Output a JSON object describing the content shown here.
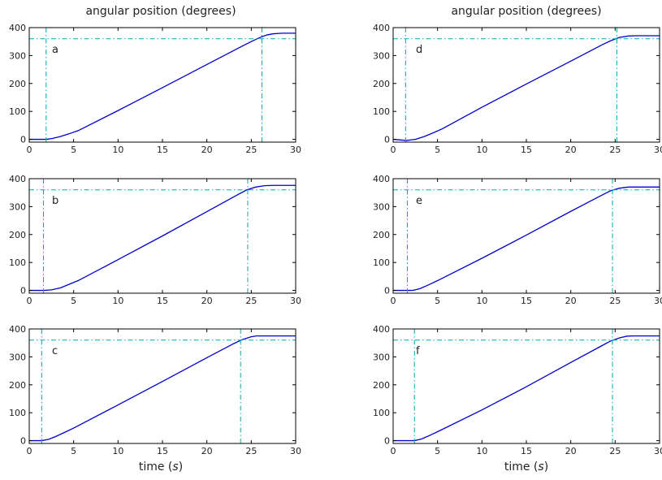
{
  "figure": {
    "left_title": "angular position (degrees)",
    "right_title": "angular position (degrees)",
    "left_xlabel_main": "time",
    "left_xlabel_unit": "s",
    "right_xlabel_main": "time",
    "right_xlabel_unit": "s"
  },
  "chart_data": [
    {
      "id": "a",
      "type": "line",
      "panel_label": "a",
      "xlim": [
        0,
        30
      ],
      "ylim": [
        -10,
        400
      ],
      "xticks": [
        0,
        5,
        10,
        15,
        20,
        25,
        30
      ],
      "yticks": [
        0,
        100,
        200,
        300,
        400
      ],
      "series": [
        {
          "color": "#0000cc",
          "style": "solid",
          "x": [
            0,
            1.9,
            2.6,
            3.5,
            4.5,
            5.5,
            10,
            15,
            20,
            24,
            25,
            26,
            26.8,
            27.5,
            28.5,
            30
          ],
          "y": [
            0,
            0,
            3,
            10,
            20,
            31,
            103,
            185,
            268,
            334,
            350,
            365,
            374,
            378,
            380,
            380
          ]
        },
        {
          "color": "#00aaaa",
          "style": "dashdot",
          "x": [
            0,
            30
          ],
          "y": [
            360,
            360
          ]
        },
        {
          "color": "#00aaaa",
          "style": "dashdot",
          "x": [
            1.9,
            1.9
          ],
          "y": [
            -10,
            400
          ]
        },
        {
          "color": "#00aaaa",
          "style": "dashdot",
          "x": [
            26.2,
            26.2
          ],
          "y": [
            -10,
            400
          ]
        }
      ]
    },
    {
      "id": "b",
      "type": "line",
      "panel_label": "b",
      "xlim": [
        0,
        30
      ],
      "ylim": [
        -10,
        400
      ],
      "xticks": [
        0,
        5,
        10,
        15,
        20,
        25,
        30
      ],
      "yticks": [
        0,
        100,
        200,
        300,
        400
      ],
      "series": [
        {
          "color": "#0000cc",
          "style": "solid",
          "x": [
            0,
            1.7,
            2.5,
            3.5,
            4.5,
            5.5,
            10,
            15,
            20,
            23.5,
            24.5,
            25.5,
            26.5,
            27.5,
            30
          ],
          "y": [
            0,
            0,
            2,
            9,
            22,
            35,
            110,
            195,
            282,
            343,
            360,
            370,
            375,
            376,
            376
          ]
        },
        {
          "color": "#00aaaa",
          "style": "dashdot",
          "x": [
            0,
            30
          ],
          "y": [
            360,
            360
          ]
        },
        {
          "color": "#00aaaa",
          "style": "dashdot",
          "x": [
            1.6,
            1.6
          ],
          "y": [
            -10,
            400
          ]
        },
        {
          "color": "#00aaaa",
          "style": "dashdot",
          "x": [
            24.6,
            24.6
          ],
          "y": [
            -10,
            400
          ]
        }
      ]
    },
    {
      "id": "c",
      "type": "line",
      "panel_label": "c",
      "xlim": [
        0,
        30
      ],
      "ylim": [
        -10,
        400
      ],
      "xticks": [
        0,
        5,
        10,
        15,
        20,
        25,
        30
      ],
      "yticks": [
        0,
        100,
        200,
        300,
        400
      ],
      "series": [
        {
          "color": "#0000cc",
          "style": "solid",
          "x": [
            0,
            1.4,
            2.2,
            3.0,
            4.0,
            5.0,
            10,
            15,
            20,
            23,
            24,
            25,
            25.6,
            26.5,
            30
          ],
          "y": [
            0,
            0,
            5,
            15,
            30,
            45,
            128,
            212,
            297,
            347,
            362,
            372,
            375,
            375,
            375
          ]
        },
        {
          "color": "#00aaaa",
          "style": "dashdot",
          "x": [
            0,
            30
          ],
          "y": [
            360,
            360
          ]
        },
        {
          "color": "#00aaaa",
          "style": "dashdot",
          "x": [
            1.4,
            1.4
          ],
          "y": [
            -10,
            400
          ]
        },
        {
          "color": "#00aaaa",
          "style": "dashdot",
          "x": [
            23.8,
            23.8
          ],
          "y": [
            -10,
            400
          ]
        }
      ]
    },
    {
      "id": "d",
      "type": "line",
      "panel_label": "d",
      "xlim": [
        0,
        30
      ],
      "ylim": [
        -10,
        400
      ],
      "xticks": [
        0,
        5,
        10,
        15,
        20,
        25,
        30
      ],
      "yticks": [
        0,
        100,
        200,
        300,
        400
      ],
      "series": [
        {
          "color": "#0000cc",
          "style": "solid",
          "x": [
            0,
            1.5,
            2.5,
            3.5,
            4.5,
            5.5,
            10,
            15,
            20,
            23.5,
            24.5,
            25.5,
            26.5,
            27.5,
            30
          ],
          "y": [
            0,
            -4,
            0,
            10,
            23,
            37,
            115,
            198,
            280,
            338,
            353,
            365,
            370,
            371,
            371
          ]
        },
        {
          "color": "#00aaaa",
          "style": "dashdot",
          "x": [
            0,
            30
          ],
          "y": [
            360,
            360
          ]
        },
        {
          "color": "#00aaaa",
          "style": "dashdot",
          "x": [
            1.4,
            1.4
          ],
          "y": [
            -10,
            400
          ]
        },
        {
          "color": "#00aaaa",
          "style": "dashdot",
          "x": [
            25.2,
            25.2
          ],
          "y": [
            -10,
            400
          ]
        }
      ]
    },
    {
      "id": "e",
      "type": "line",
      "panel_label": "e",
      "xlim": [
        0,
        30
      ],
      "ylim": [
        -10,
        400
      ],
      "xticks": [
        0,
        5,
        10,
        15,
        20,
        25,
        30
      ],
      "yticks": [
        0,
        100,
        200,
        300,
        400
      ],
      "series": [
        {
          "color": "#0000cc",
          "style": "solid",
          "x": [
            0,
            2.2,
            3.0,
            4.0,
            5.0,
            10,
            15,
            20,
            23.5,
            24.5,
            25.5,
            26.5,
            27.5,
            30
          ],
          "y": [
            0,
            0,
            6,
            20,
            35,
            115,
            198,
            283,
            341,
            357,
            366,
            370,
            370,
            370
          ]
        },
        {
          "color": "#00aaaa",
          "style": "dashdot",
          "x": [
            0,
            30
          ],
          "y": [
            360,
            360
          ]
        },
        {
          "color": "#00aaaa",
          "style": "dashdot",
          "x": [
            1.6,
            1.6
          ],
          "y": [
            -10,
            400
          ]
        },
        {
          "color": "#00aaaa",
          "style": "dashdot",
          "x": [
            24.7,
            24.7
          ],
          "y": [
            -10,
            400
          ]
        }
      ]
    },
    {
      "id": "f",
      "type": "line",
      "panel_label": "f",
      "xlim": [
        0,
        30
      ],
      "ylim": [
        -10,
        400
      ],
      "xticks": [
        0,
        5,
        10,
        15,
        20,
        25,
        30
      ],
      "yticks": [
        0,
        100,
        200,
        300,
        400
      ],
      "series": [
        {
          "color": "#0000cc",
          "style": "solid",
          "x": [
            0,
            2.4,
            3.2,
            4.2,
            5.2,
            10,
            15,
            20,
            23.5,
            24.5,
            25.5,
            26.3,
            27,
            30
          ],
          "y": [
            0,
            0,
            6,
            20,
            35,
            110,
            193,
            280,
            340,
            357,
            368,
            374,
            375,
            375
          ]
        },
        {
          "color": "#00aaaa",
          "style": "dashdot",
          "x": [
            0,
            30
          ],
          "y": [
            360,
            360
          ]
        },
        {
          "color": "#00aaaa",
          "style": "dashdot",
          "x": [
            2.4,
            2.4
          ],
          "y": [
            -10,
            400
          ]
        },
        {
          "color": "#00aaaa",
          "style": "dashdot",
          "x": [
            24.7,
            24.7
          ],
          "y": [
            -10,
            400
          ]
        }
      ]
    }
  ]
}
